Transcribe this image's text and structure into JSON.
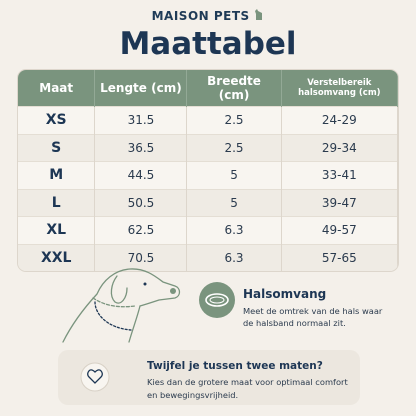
{
  "header": {
    "brand": "MAISON PETS",
    "title": "Maattabel"
  },
  "table": {
    "columns": [
      "Maat",
      "Lengte (cm)",
      "Breedte (cm)",
      "Verstelbereik halsomvang (cm)"
    ],
    "rows": [
      [
        "XS",
        "31.5",
        "2.5",
        "24-29"
      ],
      [
        "S",
        "36.5",
        "2.5",
        "29-34"
      ],
      [
        "M",
        "44.5",
        "5",
        "33-41"
      ],
      [
        "L",
        "50.5",
        "5",
        "39-47"
      ],
      [
        "XL",
        "62.5",
        "6.3",
        "49-57"
      ],
      [
        "XXL",
        "70.5",
        "6.3",
        "57-65"
      ]
    ]
  },
  "measure": {
    "title": "Halsomvang",
    "text": "Meet de omtrek van de hals waar de halsband normaal zit."
  },
  "tip": {
    "title": "Twijfel je tussen twee maten?",
    "text": "Kies dan de grotere maat voor optimaal comfort en bewegingsvrijheid."
  }
}
